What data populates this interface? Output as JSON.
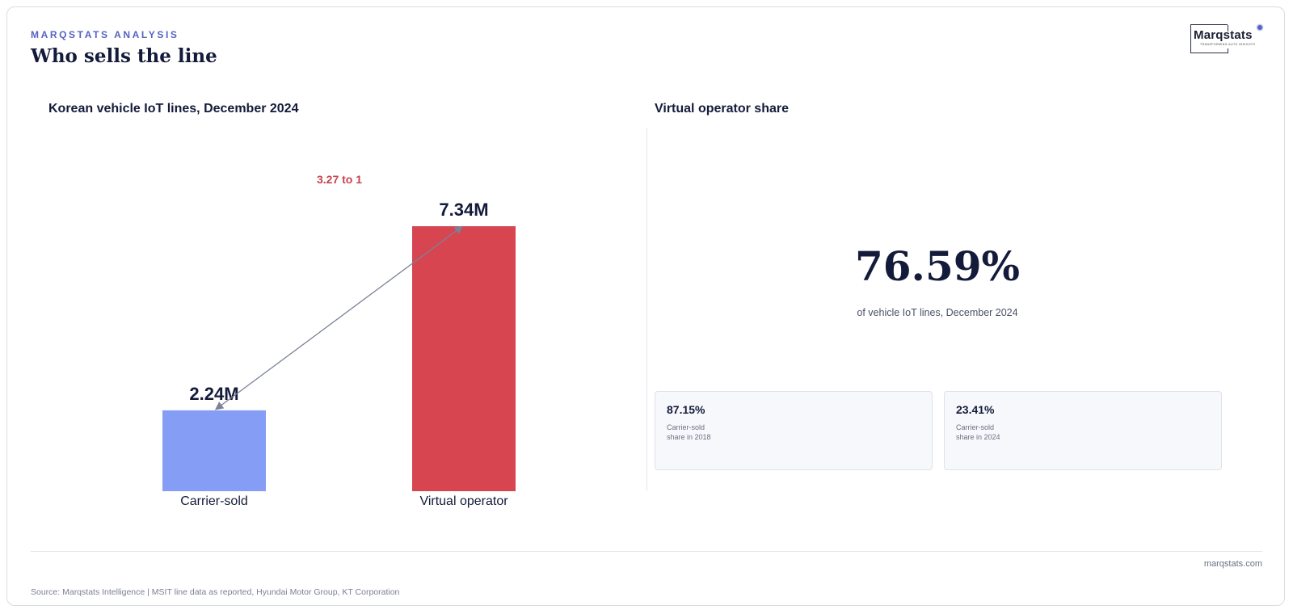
{
  "header": {
    "eyebrow": "MARQSTATS ANALYSIS",
    "title": "Who sells the line"
  },
  "logo": {
    "wordmark": "Marqstats",
    "tagline": "TRANSFORMING AUTO INSIGHTS"
  },
  "chart_data": {
    "type": "bar",
    "title": "Korean vehicle IoT lines, December 2024",
    "categories": [
      "Carrier-sold",
      "Virtual operator"
    ],
    "values": [
      2.24,
      7.34
    ],
    "value_labels": [
      "2.24M",
      "7.34M"
    ],
    "unit": "M lines",
    "colors": [
      "#859df5",
      "#d64550"
    ],
    "annotation": "3.27 to 1",
    "annotation_color": "#c8424e",
    "ylim": [
      0,
      7.34
    ],
    "grid": false
  },
  "share_panel": {
    "title": "Virtual operator share",
    "big_value": "76.59%",
    "big_caption": "of vehicle IoT lines, December 2024",
    "stats": [
      {
        "value": "87.15%",
        "label": "Carrier-sold share in 2018"
      },
      {
        "value": "23.41%",
        "label": "Carrier-sold share in 2024"
      }
    ]
  },
  "footer": {
    "site": "marqstats.com",
    "source": "Source: Marqstats Intelligence | MSIT line data as reported, Hyundai Motor Group, KT Corporation"
  }
}
